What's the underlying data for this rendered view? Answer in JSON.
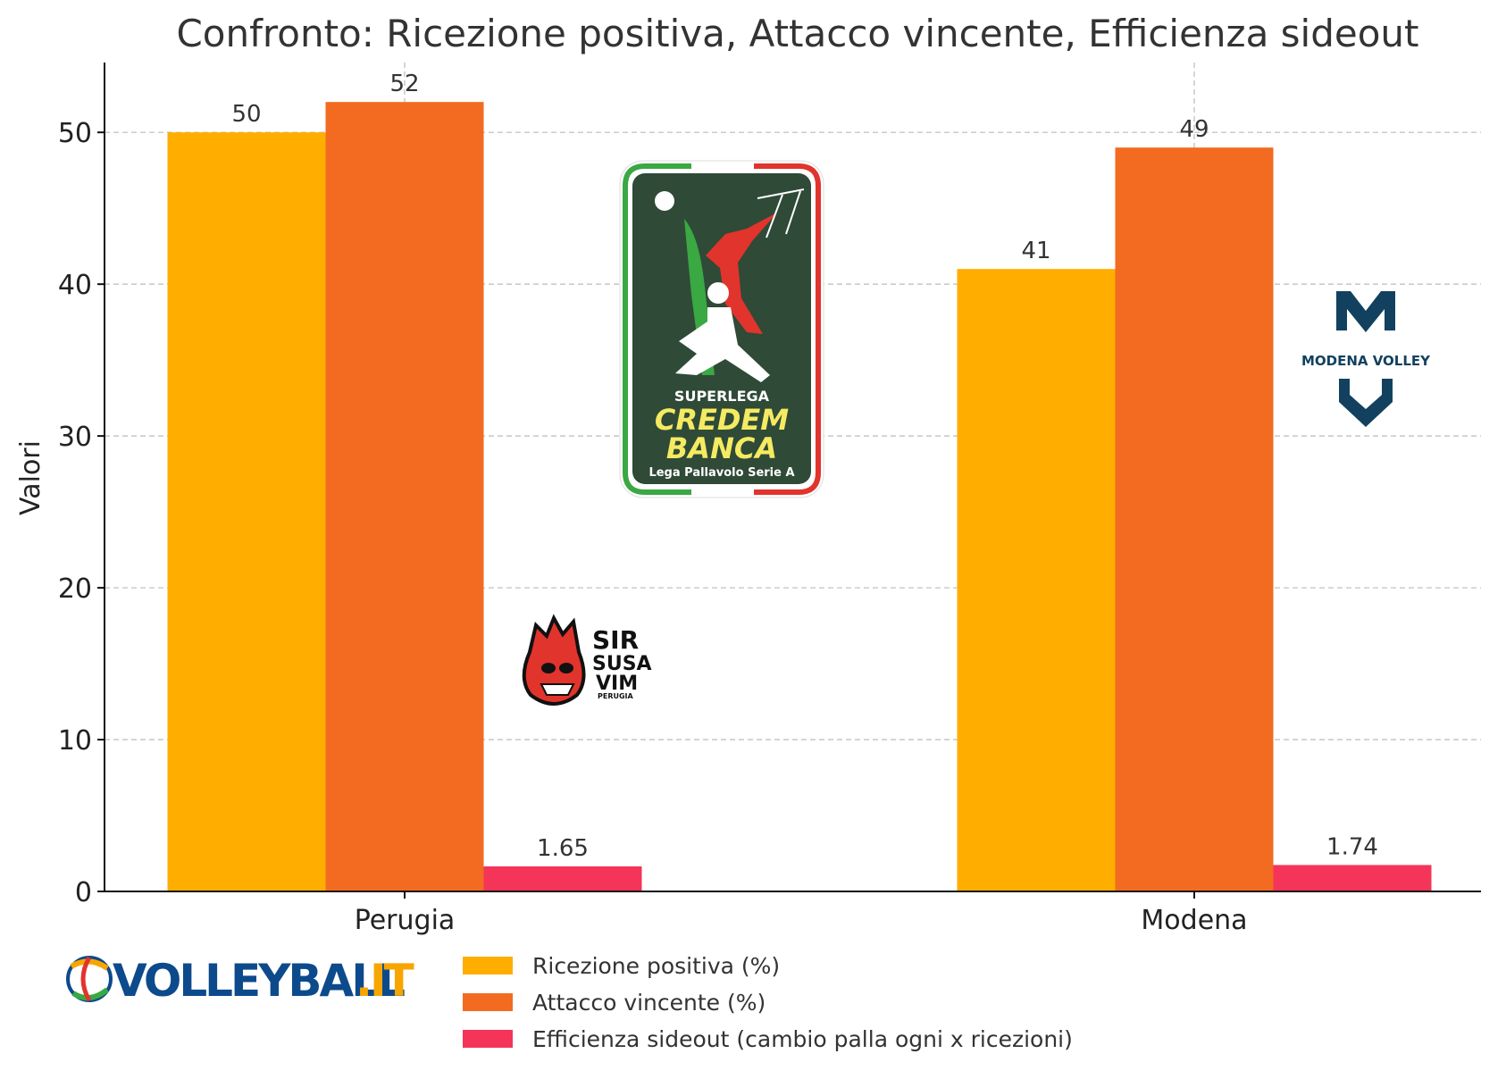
{
  "chart_data": {
    "type": "bar",
    "title": "Confronto: Ricezione positiva, Attacco vincente, Efficienza sideout",
    "xlabel": "",
    "ylabel": "Valori",
    "categories": [
      "Perugia",
      "Modena"
    ],
    "series": [
      {
        "name": "Ricezione positiva (%)",
        "values": [
          50,
          41
        ],
        "labels": [
          "50",
          "41"
        ],
        "color": "#FFAE00"
      },
      {
        "name": "Attacco vincente (%)",
        "values": [
          52,
          49
        ],
        "labels": [
          "52",
          "49"
        ],
        "color": "#F26B21"
      },
      {
        "name": "Efficienza sideout (cambio palla ogni x ricezioni)",
        "values": [
          1.65,
          1.74
        ],
        "labels": [
          "1.65",
          "1.74"
        ],
        "color": "#F5345A"
      }
    ],
    "ylim": [
      0,
      54.6
    ],
    "yticks": [
      0,
      10,
      20,
      30,
      40,
      50
    ],
    "grid": true,
    "legend_position": "bottom-center"
  },
  "logos": {
    "league": {
      "top": "SUPERLEGA",
      "line1": "CREDEM",
      "line2": "BANCA",
      "bottom": "Lega Pallavolo Serie A"
    },
    "perugia": {
      "l1": "SIR",
      "l2": "SUSA",
      "l3": "VIM",
      "l4": "PERUGIA"
    },
    "modena": {
      "text": "MODENA VOLLEY"
    },
    "site": {
      "main": "VOLLEYBALL",
      "suffix": ".IT"
    }
  }
}
